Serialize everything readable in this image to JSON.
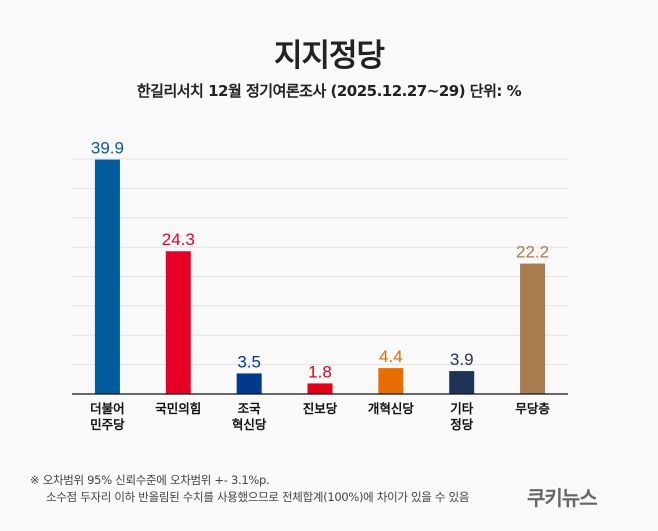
{
  "chart_data": {
    "type": "bar",
    "title": "지지정당",
    "subtitle": "한길리서치 12월 정기여론조사 (2025.12.27~29) 단위: %",
    "categories": [
      [
        "더불어",
        "민주당"
      ],
      [
        "국민의힘"
      ],
      [
        "조국",
        "혁신당"
      ],
      [
        "진보당"
      ],
      [
        "개혁신당"
      ],
      [
        "기타",
        "정당"
      ],
      [
        "무당층"
      ]
    ],
    "values": [
      39.9,
      24.3,
      3.5,
      1.8,
      4.4,
      3.9,
      22.2
    ],
    "colors": [
      "#005a9c",
      "#e60026",
      "#003a8c",
      "#e20018",
      "#e86c00",
      "#1e3457",
      "#a97c50"
    ],
    "ylim": [
      0,
      40
    ],
    "grid": true,
    "xlabel": "",
    "ylabel": ""
  },
  "footnotes": [
    "※ 오차범위 95% 신뢰수준에 오차범위 +- 3.1%p.",
    "소수점 두자리 이하 반올림된 수치를 사용했으므로 전체합계(100%)에 차이가 있을 수 있음"
  ],
  "logo": "쿠키뉴스"
}
